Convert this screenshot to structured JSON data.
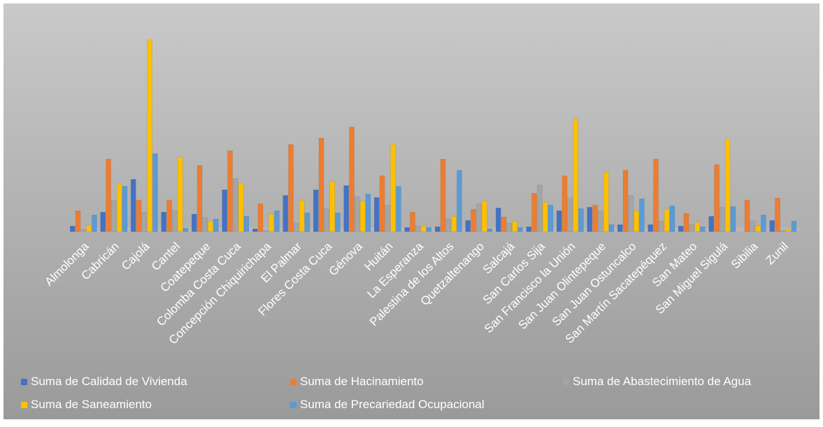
{
  "chart_data": {
    "type": "bar",
    "categories": [
      "Almolonga",
      "Cabricán",
      "Cajolá",
      "Cantel",
      "Coatepeque",
      "Colomba Costa Cuca",
      "Concepción Chiquirichapa",
      "El Palmar",
      "Flores Costa Cuca",
      "Génova",
      "Huitán",
      "La Esperanza",
      "Palestina de los Altos",
      "Quetzaltenango",
      "Salcajá",
      "San Carlos Sija",
      "San Francisco la Unión",
      "San Juan Olintepeque",
      "San Juan Ostuncalco",
      "San Martín Sacatepéquez",
      "San Mateo",
      "San Miguel Sigulá",
      "Sibilia",
      "Zunil"
    ],
    "series": [
      {
        "name": "Suma de Calidad de Vivienda",
        "color": "#4472c4",
        "values": [
          8,
          28,
          75,
          28,
          25,
          60,
          4,
          52,
          60,
          66,
          49,
          6,
          7,
          16,
          34,
          7,
          30,
          35,
          10,
          10,
          8,
          22,
          0,
          16
        ]
      },
      {
        "name": "Suma de Hacinamiento",
        "color": "#ed7d31",
        "values": [
          30,
          104,
          45,
          45,
          95,
          116,
          40,
          125,
          134,
          150,
          80,
          28,
          104,
          32,
          21,
          55,
          80,
          38,
          88,
          104,
          26,
          96,
          45,
          48
        ]
      },
      {
        "name": "Suma de Abastecimiento de Agua",
        "color": "#a5a5a5",
        "values": [
          4,
          45,
          28,
          30,
          20,
          76,
          2,
          12,
          33,
          50,
          38,
          8,
          18,
          40,
          12,
          67,
          48,
          30,
          52,
          15,
          10,
          35,
          15,
          2
        ]
      },
      {
        "name": "Suma de Saneamiento",
        "color": "#ffc000",
        "values": [
          9,
          68,
          275,
          107,
          15,
          70,
          25,
          45,
          72,
          44,
          125,
          8,
          22,
          44,
          14,
          42,
          162,
          85,
          30,
          32,
          13,
          133,
          8,
          3
        ]
      },
      {
        "name": "Suma de Precariedad Ocupacional",
        "color": "#5b9bd5",
        "values": [
          24,
          65,
          112,
          5,
          18,
          22,
          30,
          27,
          27,
          54,
          65,
          6,
          88,
          4,
          6,
          38,
          33,
          10,
          47,
          37,
          7,
          36,
          24,
          15
        ]
      }
    ],
    "ylim": [
      0,
      280
    ]
  }
}
